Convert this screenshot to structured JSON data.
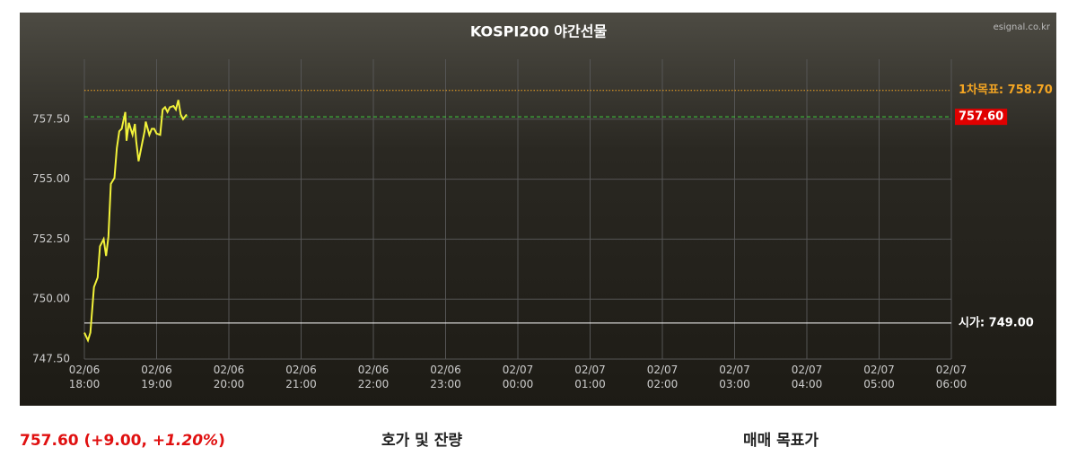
{
  "chart_data": {
    "type": "line",
    "title": "KOSPI200 야간선물",
    "source": "esignal.co.kr",
    "series": [
      {
        "name": "KOSPI200 야간선물",
        "color": "#f2f23a",
        "x": [
          "02/06 18:00",
          "02/06 18:03",
          "02/06 18:05",
          "02/06 18:08",
          "02/06 18:11",
          "02/06 18:13",
          "02/06 18:16",
          "02/06 18:18",
          "02/06 18:20",
          "02/06 18:22",
          "02/06 18:25",
          "02/06 18:27",
          "02/06 18:29",
          "02/06 18:31",
          "02/06 18:34",
          "02/06 18:35",
          "02/06 18:37",
          "02/06 18:40",
          "02/06 18:42",
          "02/06 18:43",
          "02/06 18:45",
          "02/06 18:48",
          "02/06 18:50",
          "02/06 18:51",
          "02/06 18:54",
          "02/06 18:56",
          "02/06 18:58",
          "02/06 19:00",
          "02/06 19:03",
          "02/06 19:05",
          "02/06 19:07",
          "02/06 19:09",
          "02/06 19:11",
          "02/06 19:14",
          "02/06 19:16",
          "02/06 19:18",
          "02/06 19:20",
          "02/06 19:22",
          "02/06 19:25"
        ],
        "values": [
          748.6,
          748.28,
          748.6,
          750.5,
          750.9,
          752.2,
          752.5,
          751.8,
          752.6,
          754.8,
          755.05,
          756.3,
          757.0,
          757.1,
          757.8,
          756.6,
          757.35,
          756.85,
          757.3,
          756.6,
          755.75,
          756.5,
          757.0,
          757.4,
          756.85,
          757.1,
          757.1,
          756.9,
          756.85,
          757.9,
          758.0,
          757.8,
          758.0,
          758.05,
          757.9,
          758.3,
          757.7,
          757.5,
          757.7
        ]
      }
    ],
    "xlim": [
      "02/06 18:00",
      "02/07 06:00"
    ],
    "xticks": [
      "02/06 18:00",
      "02/06 19:00",
      "02/06 20:00",
      "02/06 21:00",
      "02/06 22:00",
      "02/06 23:00",
      "02/07 00:00",
      "02/07 01:00",
      "02/07 02:00",
      "02/07 03:00",
      "02/07 04:00",
      "02/07 05:00",
      "02/07 06:00"
    ],
    "ylim": [
      747.5,
      760
    ],
    "yticks": [
      {
        "value": 747.5,
        "label": "747.50"
      },
      {
        "value": 750,
        "label": "750.00"
      },
      {
        "value": 752.5,
        "label": "752.50"
      },
      {
        "value": 755,
        "label": "755.00"
      },
      {
        "value": 757.5,
        "label": "757.50"
      }
    ],
    "grid": true,
    "annotations": [
      {
        "value": 758.7,
        "label": "1차목표: 758.70",
        "color": "#f5a623",
        "style": "dotted"
      },
      {
        "value": 757.6,
        "label": "757.60",
        "color": "#3fcf3f",
        "style": "dashed"
      },
      {
        "value": 749,
        "label": "시가: 749.00",
        "color": "#ffffff",
        "style": "solid"
      }
    ]
  },
  "quote": {
    "price_change": "757.60 (+9.00, ",
    "percent": "+1.20%",
    "close": ")"
  },
  "sections": [
    "호가 및 잔량",
    "매매 목표가"
  ]
}
